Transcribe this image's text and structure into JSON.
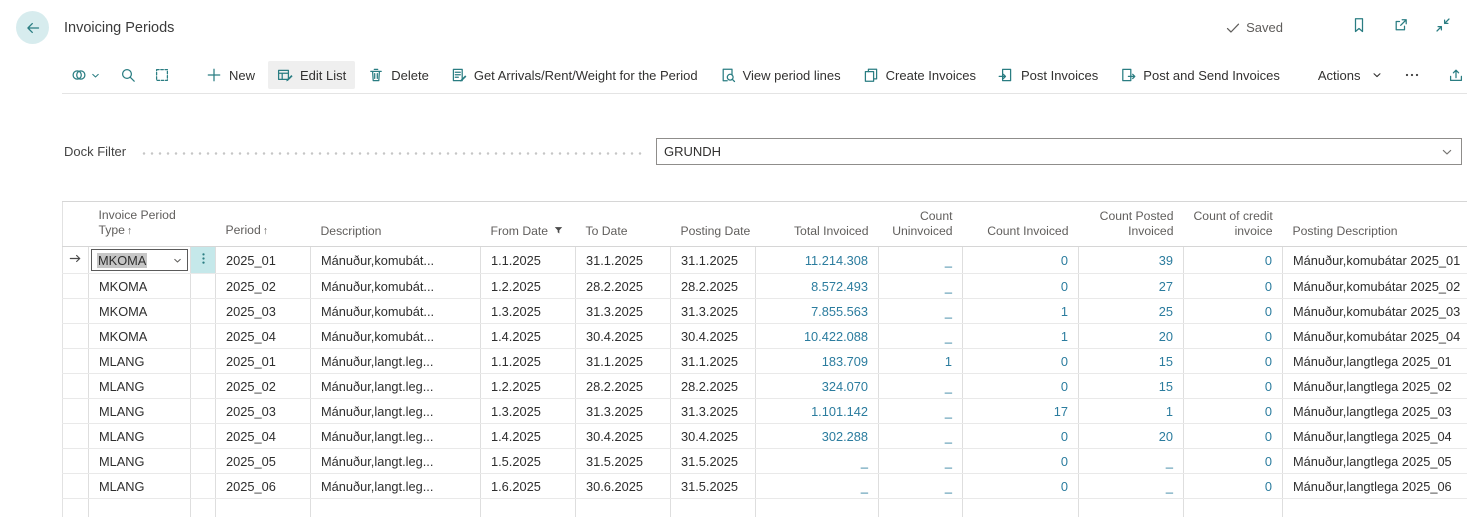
{
  "colors": {
    "accent": "#2a7d82",
    "link": "#2b7c9e",
    "row_action_bg": "#c5e8ea"
  },
  "page": {
    "title": "Invoicing Periods",
    "saved_label": "Saved",
    "header_icons": [
      "bookmark-icon",
      "popout-icon",
      "collapse-icon"
    ]
  },
  "toolbar": {
    "left_icons": [
      "views-icon",
      "search-icon",
      "analyze-icon"
    ],
    "buttons": [
      {
        "label": "New",
        "icon": "plus-icon",
        "active": false
      },
      {
        "label": "Edit List",
        "icon": "edit-list-icon",
        "active": true
      },
      {
        "label": "Delete",
        "icon": "delete-icon",
        "active": false
      },
      {
        "label": "Get Arrivals/Rent/Weight for the Period",
        "icon": "clipboard-edit-icon",
        "active": false
      },
      {
        "label": "View period lines",
        "icon": "doc-search-icon",
        "active": false
      },
      {
        "label": "Create Invoices",
        "icon": "copy-doc-icon",
        "active": false
      },
      {
        "label": "Post Invoices",
        "icon": "post-icon",
        "active": false
      },
      {
        "label": "Post and Send Invoices",
        "icon": "post-send-icon",
        "active": false
      }
    ],
    "actions_label": "Actions",
    "more_label": "more",
    "right_icons": [
      "share-icon",
      "filter-icon",
      "list-icon"
    ]
  },
  "filter": {
    "label": "Dock Filter",
    "value": "GRUNDH"
  },
  "table": {
    "columns": [
      {
        "id": "indicator",
        "label": "",
        "align": "left"
      },
      {
        "id": "type",
        "label": "Invoice Period\nType",
        "sort": "asc",
        "align": "left"
      },
      {
        "id": "rowmenu",
        "label": "",
        "align": "left"
      },
      {
        "id": "period",
        "label": "Period",
        "sort": "asc",
        "align": "left"
      },
      {
        "id": "description",
        "label": "Description",
        "align": "left"
      },
      {
        "id": "from_date",
        "label": "From Date",
        "filter": true,
        "align": "left"
      },
      {
        "id": "to_date",
        "label": "To Date",
        "align": "left"
      },
      {
        "id": "posting_date",
        "label": "Posting Date",
        "align": "left"
      },
      {
        "id": "total_invoiced",
        "label": "Total Invoiced",
        "align": "right",
        "link": true
      },
      {
        "id": "count_uninvoiced",
        "label": "Count\nUninvoiced",
        "align": "right",
        "link": true
      },
      {
        "id": "count_invoiced",
        "label": "Count Invoiced",
        "align": "right",
        "link": true
      },
      {
        "id": "count_posted",
        "label": "Count Posted\nInvoiced",
        "align": "right",
        "link": true
      },
      {
        "id": "count_credit",
        "label": "Count of credit\ninvoice",
        "align": "right",
        "link": true
      },
      {
        "id": "posting_description",
        "label": "Posting Description",
        "align": "left"
      }
    ],
    "rows": [
      {
        "selected": true,
        "type": "MKOMA",
        "period": "2025_01",
        "description": "Mánuður,komubát...",
        "from_date": "1.1.2025",
        "to_date": "31.1.2025",
        "posting_date": "31.1.2025",
        "total_invoiced": "11.214.308",
        "count_uninvoiced": "_",
        "count_invoiced": "0",
        "count_posted": "39",
        "count_credit": "0",
        "posting_description": "Mánuður,komubátar 2025_01"
      },
      {
        "selected": false,
        "type": "MKOMA",
        "period": "2025_02",
        "description": "Mánuður,komubát...",
        "from_date": "1.2.2025",
        "to_date": "28.2.2025",
        "posting_date": "28.2.2025",
        "total_invoiced": "8.572.493",
        "count_uninvoiced": "_",
        "count_invoiced": "0",
        "count_posted": "27",
        "count_credit": "0",
        "posting_description": "Mánuður,komubátar 2025_02"
      },
      {
        "selected": false,
        "type": "MKOMA",
        "period": "2025_03",
        "description": "Mánuður,komubát...",
        "from_date": "1.3.2025",
        "to_date": "31.3.2025",
        "posting_date": "31.3.2025",
        "total_invoiced": "7.855.563",
        "count_uninvoiced": "_",
        "count_invoiced": "1",
        "count_posted": "25",
        "count_credit": "0",
        "posting_description": "Mánuður,komubátar 2025_03"
      },
      {
        "selected": false,
        "type": "MKOMA",
        "period": "2025_04",
        "description": "Mánuður,komubát...",
        "from_date": "1.4.2025",
        "to_date": "30.4.2025",
        "posting_date": "30.4.2025",
        "total_invoiced": "10.422.088",
        "count_uninvoiced": "_",
        "count_invoiced": "1",
        "count_posted": "20",
        "count_credit": "0",
        "posting_description": "Mánuður,komubátar 2025_04"
      },
      {
        "selected": false,
        "type": "MLANG",
        "period": "2025_01",
        "description": "Mánuður,langt.leg...",
        "from_date": "1.1.2025",
        "to_date": "31.1.2025",
        "posting_date": "31.1.2025",
        "total_invoiced": "183.709",
        "count_uninvoiced": "1",
        "count_invoiced": "0",
        "count_posted": "15",
        "count_credit": "0",
        "posting_description": "Mánuður,langtlega 2025_01"
      },
      {
        "selected": false,
        "type": "MLANG",
        "period": "2025_02",
        "description": "Mánuður,langt.leg...",
        "from_date": "1.2.2025",
        "to_date": "28.2.2025",
        "posting_date": "28.2.2025",
        "total_invoiced": "324.070",
        "count_uninvoiced": "_",
        "count_invoiced": "0",
        "count_posted": "15",
        "count_credit": "0",
        "posting_description": "Mánuður,langtlega 2025_02"
      },
      {
        "selected": false,
        "type": "MLANG",
        "period": "2025_03",
        "description": "Mánuður,langt.leg...",
        "from_date": "1.3.2025",
        "to_date": "31.3.2025",
        "posting_date": "31.3.2025",
        "total_invoiced": "1.101.142",
        "count_uninvoiced": "_",
        "count_invoiced": "17",
        "count_posted": "1",
        "count_credit": "0",
        "posting_description": "Mánuður,langtlega 2025_03"
      },
      {
        "selected": false,
        "type": "MLANG",
        "period": "2025_04",
        "description": "Mánuður,langt.leg...",
        "from_date": "1.4.2025",
        "to_date": "30.4.2025",
        "posting_date": "30.4.2025",
        "total_invoiced": "302.288",
        "count_uninvoiced": "_",
        "count_invoiced": "0",
        "count_posted": "20",
        "count_credit": "0",
        "posting_description": "Mánuður,langtlega 2025_04"
      },
      {
        "selected": false,
        "type": "MLANG",
        "period": "2025_05",
        "description": "Mánuður,langt.leg...",
        "from_date": "1.5.2025",
        "to_date": "31.5.2025",
        "posting_date": "31.5.2025",
        "total_invoiced": "_",
        "count_uninvoiced": "_",
        "count_invoiced": "0",
        "count_posted": "_",
        "count_credit": "0",
        "posting_description": "Mánuður,langtlega 2025_05"
      },
      {
        "selected": false,
        "type": "MLANG",
        "period": "2025_06",
        "description": "Mánuður,langt.leg...",
        "from_date": "1.6.2025",
        "to_date": "30.6.2025",
        "posting_date": "31.5.2025",
        "total_invoiced": "_",
        "count_uninvoiced": "_",
        "count_invoiced": "0",
        "count_posted": "_",
        "count_credit": "0",
        "posting_description": "Mánuður,langtlega 2025_06"
      }
    ]
  }
}
